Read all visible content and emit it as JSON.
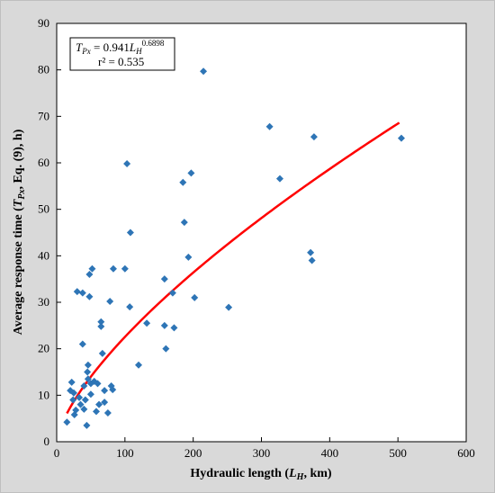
{
  "chart_data": {
    "type": "scatter",
    "xlabel": {
      "prefix": "Hydraulic length (",
      "var": "L",
      "sub": "H",
      "suffix": ", km)"
    },
    "ylabel": {
      "prefix": "Average response time (",
      "var": "T",
      "sub": "Px",
      "suffix": ", Eq. (9), h)"
    },
    "xlim": [
      0,
      600
    ],
    "ylim": [
      0,
      90
    ],
    "xticks": [
      0,
      100,
      200,
      300,
      400,
      500,
      600
    ],
    "yticks": [
      0,
      10,
      20,
      30,
      40,
      50,
      60,
      70,
      80,
      90
    ],
    "grid": false,
    "annotation": {
      "lhs_var": "T",
      "lhs_sub": "Px",
      "equals": " = 0.941",
      "rhs_var": "L",
      "rhs_sub": "H",
      "exponent": "0.6898",
      "r2_label": "r² = 0.535"
    },
    "series": [
      {
        "kind": "points",
        "color": "#2e75b6",
        "points": [
          [
            15,
            4.2
          ],
          [
            20,
            11
          ],
          [
            22,
            12.8
          ],
          [
            24,
            9
          ],
          [
            25,
            10.5
          ],
          [
            26,
            5.8
          ],
          [
            28,
            6.8
          ],
          [
            30,
            32.3
          ],
          [
            33,
            9.5
          ],
          [
            35,
            8
          ],
          [
            38,
            32
          ],
          [
            38,
            21
          ],
          [
            40,
            7
          ],
          [
            40,
            12
          ],
          [
            42,
            9
          ],
          [
            44,
            3.5
          ],
          [
            45,
            15
          ],
          [
            46,
            16.5
          ],
          [
            46,
            13.5
          ],
          [
            48,
            31.2
          ],
          [
            48,
            36
          ],
          [
            50,
            10.2
          ],
          [
            50,
            12.5
          ],
          [
            52,
            37.2
          ],
          [
            55,
            13
          ],
          [
            58,
            6.5
          ],
          [
            60,
            12.5
          ],
          [
            62,
            8
          ],
          [
            65,
            25.8
          ],
          [
            65,
            24.8
          ],
          [
            67,
            19
          ],
          [
            70,
            8.5
          ],
          [
            70,
            11
          ],
          [
            75,
            6.2
          ],
          [
            78,
            30.2
          ],
          [
            80,
            12
          ],
          [
            82,
            11.2
          ],
          [
            83,
            37.2
          ],
          [
            100,
            37.2
          ],
          [
            103,
            59.8
          ],
          [
            107,
            29
          ],
          [
            108,
            45
          ],
          [
            120,
            16.5
          ],
          [
            132,
            25.5
          ],
          [
            158,
            35
          ],
          [
            158,
            25
          ],
          [
            160,
            20
          ],
          [
            170,
            32
          ],
          [
            172,
            24.5
          ],
          [
            185,
            55.8
          ],
          [
            187,
            47.2
          ],
          [
            193,
            39.7
          ],
          [
            197,
            57.8
          ],
          [
            202,
            31
          ],
          [
            215,
            79.7
          ],
          [
            252,
            28.9
          ],
          [
            312,
            67.8
          ],
          [
            327,
            56.6
          ],
          [
            372,
            40.7
          ],
          [
            374,
            39
          ],
          [
            377,
            65.6
          ],
          [
            505,
            65.3
          ]
        ]
      },
      {
        "kind": "fit",
        "color": "#ff0000",
        "a": 0.941,
        "b": 0.6898,
        "x_range": [
          15,
          502
        ]
      }
    ]
  }
}
